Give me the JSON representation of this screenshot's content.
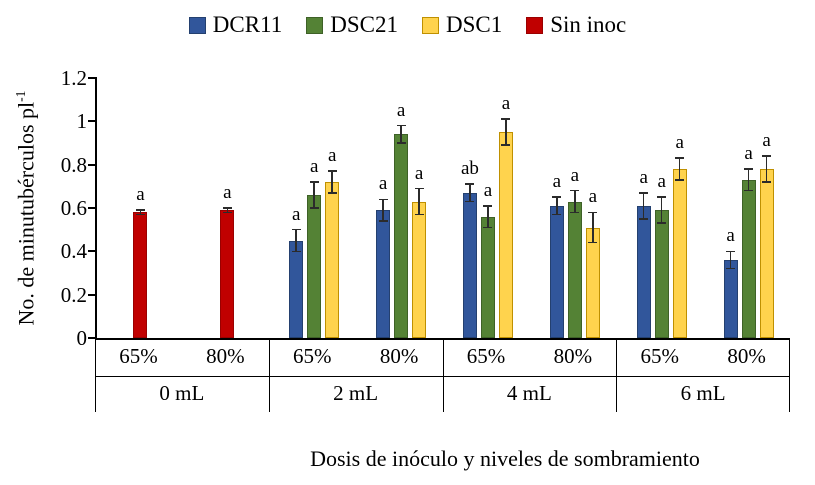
{
  "chart_data": {
    "type": "bar",
    "title": "",
    "xlabel": "Dosis de inóculo y niveles de sombramiento",
    "ylabel": "No. de minutubérculos pl⁻¹",
    "ylabel_base": "No. de minutubérculos pl",
    "ylabel_sup": "-1",
    "ylim": [
      0,
      1.2
    ],
    "yticks": [
      "0",
      "0.2",
      "0.4",
      "0.6",
      "0.8",
      "1",
      "1.2"
    ],
    "grid": false,
    "legend_position": "top",
    "legend": [
      {
        "name": "DCR11",
        "color": "#31569B",
        "border": "#24406F"
      },
      {
        "name": "DSC21",
        "color": "#548235",
        "border": "#3E6127"
      },
      {
        "name": "DSC1",
        "color": "#FFD34D",
        "border": "#BF9000"
      },
      {
        "name": "Sin inoc",
        "color": "#C00000",
        "border": "#9A0000"
      }
    ],
    "groups": [
      {
        "label": "0 mL",
        "subgroups": [
          {
            "label": "65%",
            "bars": [
              {
                "series": "Sin inoc",
                "value": 0.58,
                "err": 0.01,
                "letter": "a"
              }
            ]
          },
          {
            "label": "80%",
            "bars": [
              {
                "series": "Sin inoc",
                "value": 0.59,
                "err": 0.01,
                "letter": "a"
              }
            ]
          }
        ]
      },
      {
        "label": "2 mL",
        "subgroups": [
          {
            "label": "65%",
            "bars": [
              {
                "series": "DCR11",
                "value": 0.45,
                "err": 0.05,
                "letter": "a"
              },
              {
                "series": "DSC21",
                "value": 0.66,
                "err": 0.06,
                "letter": "a"
              },
              {
                "series": "DSC1",
                "value": 0.72,
                "err": 0.05,
                "letter": "a"
              }
            ]
          },
          {
            "label": "80%",
            "bars": [
              {
                "series": "DCR11",
                "value": 0.59,
                "err": 0.05,
                "letter": "a"
              },
              {
                "series": "DSC21",
                "value": 0.94,
                "err": 0.04,
                "letter": "a"
              },
              {
                "series": "DSC1",
                "value": 0.63,
                "err": 0.06,
                "letter": "a"
              }
            ]
          }
        ]
      },
      {
        "label": "4 mL",
        "subgroups": [
          {
            "label": "65%",
            "bars": [
              {
                "series": "DCR11",
                "value": 0.67,
                "err": 0.04,
                "letter": "ab"
              },
              {
                "series": "DSC21",
                "value": 0.56,
                "err": 0.05,
                "letter": "a"
              },
              {
                "series": "DSC1",
                "value": 0.95,
                "err": 0.06,
                "letter": "a"
              }
            ]
          },
          {
            "label": "80%",
            "bars": [
              {
                "series": "DCR11",
                "value": 0.61,
                "err": 0.04,
                "letter": "a"
              },
              {
                "series": "DSC21",
                "value": 0.63,
                "err": 0.05,
                "letter": "a"
              },
              {
                "series": "DSC1",
                "value": 0.51,
                "err": 0.07,
                "letter": "a"
              }
            ]
          }
        ]
      },
      {
        "label": "6 mL",
        "subgroups": [
          {
            "label": "65%",
            "bars": [
              {
                "series": "DCR11",
                "value": 0.61,
                "err": 0.06,
                "letter": "a"
              },
              {
                "series": "DSC21",
                "value": 0.59,
                "err": 0.06,
                "letter": "a"
              },
              {
                "series": "DSC1",
                "value": 0.78,
                "err": 0.05,
                "letter": "a"
              }
            ]
          },
          {
            "label": "80%",
            "bars": [
              {
                "series": "DCR11",
                "value": 0.36,
                "err": 0.04,
                "letter": "a"
              },
              {
                "series": "DSC21",
                "value": 0.73,
                "err": 0.05,
                "letter": "a"
              },
              {
                "series": "DSC1",
                "value": 0.78,
                "err": 0.06,
                "letter": "a"
              }
            ]
          }
        ]
      }
    ]
  }
}
